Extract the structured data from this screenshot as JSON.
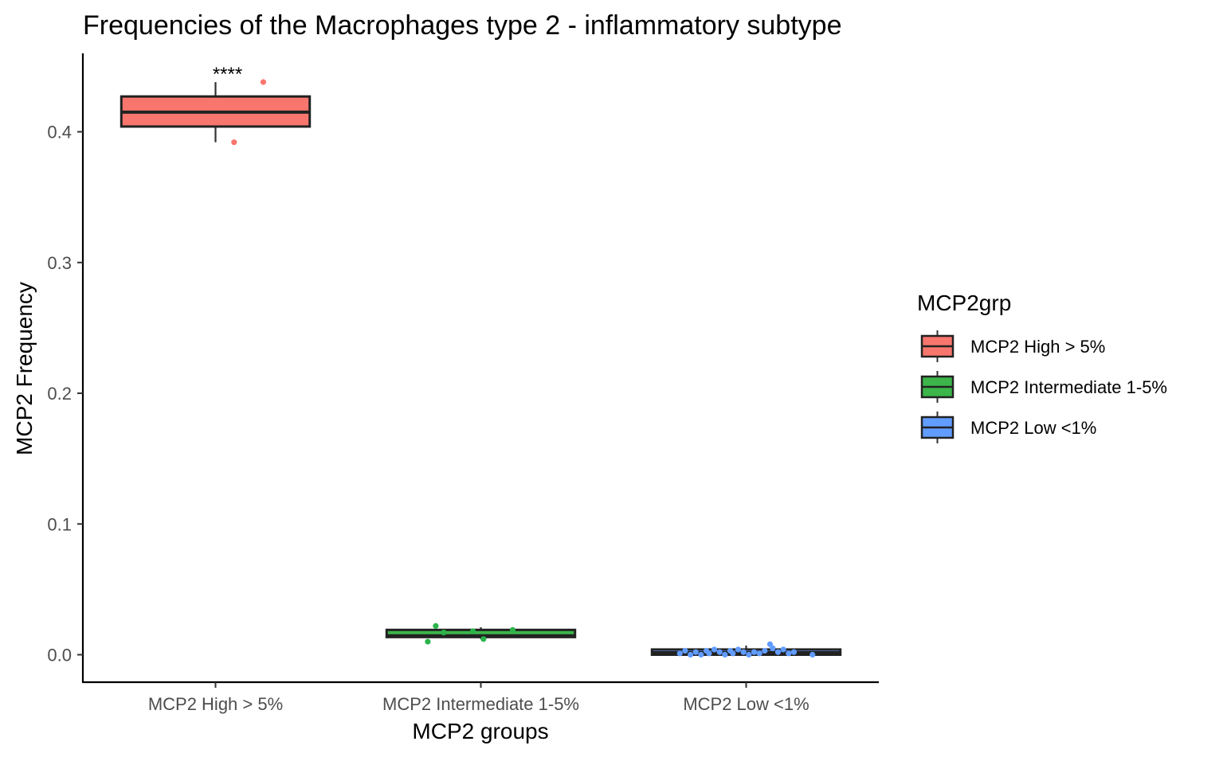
{
  "chart_data": {
    "type": "box",
    "title": "Frequencies of the Macrophages type 2 - inflammatory subtype",
    "xlabel": "MCP2 groups",
    "ylabel": "MCP2 Frequency",
    "ylim": [
      -0.021,
      0.46
    ],
    "yticks": [
      {
        "value": 0.0,
        "label": "0.0"
      },
      {
        "value": 0.1,
        "label": "0.1"
      },
      {
        "value": 0.2,
        "label": "0.2"
      },
      {
        "value": 0.3,
        "label": "0.3"
      },
      {
        "value": 0.4,
        "label": "0.4"
      }
    ],
    "grid": false,
    "legend": {
      "title": "MCP2grp",
      "placement": "right",
      "entries": [
        {
          "label": "MCP2 High > 5%",
          "color": "#F8766D"
        },
        {
          "label": "MCP2 Intermediate 1-5%",
          "color": "#3CB54A"
        },
        {
          "label": "MCP2 Low <1%",
          "color": "#619CFF"
        }
      ]
    },
    "categories": [
      "MCP2 High > 5%",
      "MCP2 Intermediate 1-5%",
      "MCP2 Low <1%"
    ],
    "boxes": [
      {
        "category": "MCP2 High > 5%",
        "color": "#F8766D",
        "point_color": "#F8766D",
        "whisker_low": 0.392,
        "q1": 0.404,
        "median": 0.415,
        "q3": 0.427,
        "whisker_high": 0.438,
        "points": [
          [
            0.07,
            0.392
          ],
          [
            0.18,
            0.438
          ]
        ],
        "annotation": "****"
      },
      {
        "category": "MCP2 Intermediate 1-5%",
        "color": "#3CB54A",
        "point_color": "#2BB34A",
        "whisker_low": 0.012,
        "q1": 0.0135,
        "median": 0.0145,
        "q3": 0.019,
        "whisker_high": 0.021,
        "points": [
          [
            -0.2,
            0.01
          ],
          [
            -0.17,
            0.022
          ],
          [
            -0.14,
            0.017
          ],
          [
            -0.03,
            0.018
          ],
          [
            0.01,
            0.012
          ],
          [
            0.12,
            0.019
          ]
        ],
        "annotation": ""
      },
      {
        "category": "MCP2 Low <1%",
        "color": "#619CFF",
        "point_color": "#619CFF",
        "whisker_low": 0.0,
        "q1": 0.0,
        "median": 0.0015,
        "q3": 0.004,
        "whisker_high": 0.007,
        "points": [
          [
            -0.25,
            0.001
          ],
          [
            -0.23,
            0.003
          ],
          [
            -0.21,
            0.0
          ],
          [
            -0.19,
            0.002
          ],
          [
            -0.17,
            0.0
          ],
          [
            -0.15,
            0.003
          ],
          [
            -0.14,
            0.001
          ],
          [
            -0.12,
            0.004
          ],
          [
            -0.1,
            0.002
          ],
          [
            -0.08,
            0.0
          ],
          [
            -0.06,
            0.003
          ],
          [
            -0.05,
            0.001
          ],
          [
            -0.03,
            0.004
          ],
          [
            -0.01,
            0.002
          ],
          [
            0.01,
            0.0
          ],
          [
            0.03,
            0.002
          ],
          [
            0.05,
            0.001
          ],
          [
            0.07,
            0.003
          ],
          [
            0.09,
            0.008
          ],
          [
            0.1,
            0.005
          ],
          [
            0.12,
            0.002
          ],
          [
            0.14,
            0.004
          ],
          [
            0.16,
            0.001
          ],
          [
            0.18,
            0.002
          ],
          [
            0.25,
            0.0
          ]
        ],
        "annotation": ""
      }
    ]
  }
}
